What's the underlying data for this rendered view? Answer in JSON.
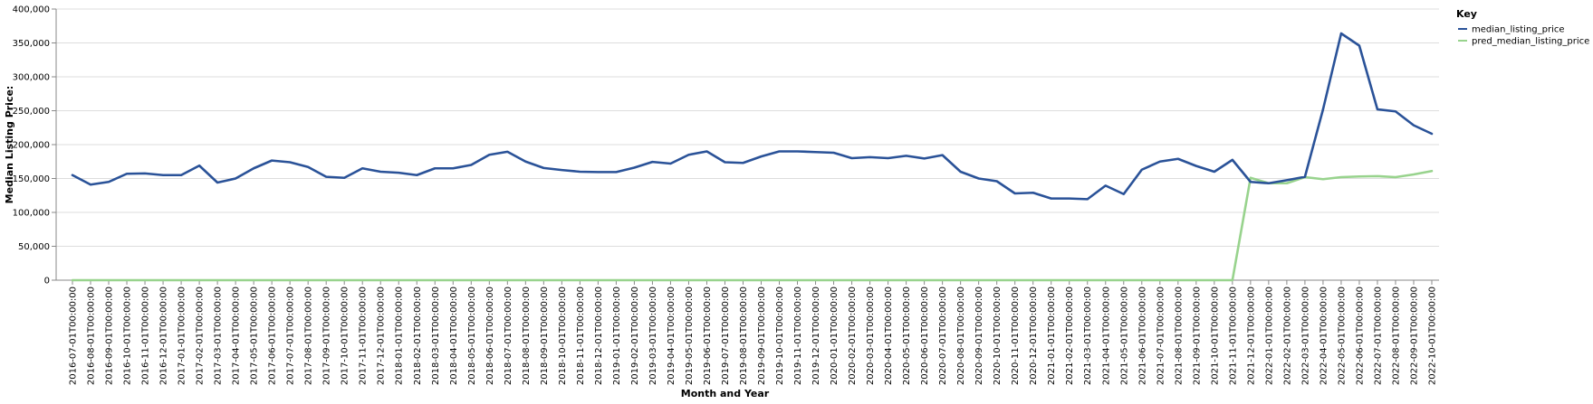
{
  "chart_data": {
    "type": "line",
    "xlabel": "Month and Year",
    "ylabel": "Median Listing Price:",
    "ylim": [
      0,
      400000
    ],
    "yticks": [
      0,
      50000,
      100000,
      150000,
      200000,
      250000,
      300000,
      350000,
      400000
    ],
    "ytick_labels": [
      "0",
      "50,000",
      "100,000",
      "150,000",
      "200,000",
      "250,000",
      "300,000",
      "350,000",
      "400,000"
    ],
    "grid": true,
    "legend": {
      "title": "Key",
      "placement": "top-right"
    },
    "x": [
      "2016-07-01T00:00:00",
      "2016-08-01T00:00:00",
      "2016-09-01T00:00:00",
      "2016-10-01T00:00:00",
      "2016-11-01T00:00:00",
      "2016-12-01T00:00:00",
      "2017-01-01T00:00:00",
      "2017-02-01T00:00:00",
      "2017-03-01T00:00:00",
      "2017-04-01T00:00:00",
      "2017-05-01T00:00:00",
      "2017-06-01T00:00:00",
      "2017-07-01T00:00:00",
      "2017-08-01T00:00:00",
      "2017-09-01T00:00:00",
      "2017-10-01T00:00:00",
      "2017-11-01T00:00:00",
      "2017-12-01T00:00:00",
      "2018-01-01T00:00:00",
      "2018-02-01T00:00:00",
      "2018-03-01T00:00:00",
      "2018-04-01T00:00:00",
      "2018-05-01T00:00:00",
      "2018-06-01T00:00:00",
      "2018-07-01T00:00:00",
      "2018-08-01T00:00:00",
      "2018-09-01T00:00:00",
      "2018-10-01T00:00:00",
      "2018-11-01T00:00:00",
      "2018-12-01T00:00:00",
      "2019-01-01T00:00:00",
      "2019-02-01T00:00:00",
      "2019-03-01T00:00:00",
      "2019-04-01T00:00:00",
      "2019-05-01T00:00:00",
      "2019-06-01T00:00:00",
      "2019-07-01T00:00:00",
      "2019-08-01T00:00:00",
      "2019-09-01T00:00:00",
      "2019-10-01T00:00:00",
      "2019-11-01T00:00:00",
      "2019-12-01T00:00:00",
      "2020-01-01T00:00:00",
      "2020-02-01T00:00:00",
      "2020-03-01T00:00:00",
      "2020-04-01T00:00:00",
      "2020-05-01T00:00:00",
      "2020-06-01T00:00:00",
      "2020-07-01T00:00:00",
      "2020-08-01T00:00:00",
      "2020-09-01T00:00:00",
      "2020-10-01T00:00:00",
      "2020-11-01T00:00:00",
      "2020-12-01T00:00:00",
      "2021-01-01T00:00:00",
      "2021-02-01T00:00:00",
      "2021-03-01T00:00:00",
      "2021-04-01T00:00:00",
      "2021-05-01T00:00:00",
      "2021-06-01T00:00:00",
      "2021-07-01T00:00:00",
      "2021-08-01T00:00:00",
      "2021-09-01T00:00:00",
      "2021-10-01T00:00:00",
      "2021-11-01T00:00:00",
      "2021-12-01T00:00:00",
      "2022-01-01T00:00:00",
      "2022-02-01T00:00:00",
      "2022-03-01T00:00:00",
      "2022-04-01T00:00:00",
      "2022-05-01T00:00:00",
      "2022-06-01T00:00:00",
      "2022-07-01T00:00:00",
      "2022-08-01T00:00:00",
      "2022-09-01T00:00:00",
      "2022-10-01T00:00:00"
    ],
    "series": [
      {
        "name": "median_listing_price",
        "color": "#2a5298",
        "values": [
          155000,
          141000,
          145000,
          157000,
          157500,
          155000,
          155000,
          169000,
          144000,
          150000,
          165000,
          176500,
          174000,
          167000,
          152500,
          151000,
          165000,
          160000,
          158500,
          155000,
          165000,
          165000,
          170000,
          185000,
          189500,
          175000,
          165500,
          162500,
          160000,
          159500,
          159500,
          166000,
          174500,
          172000,
          185000,
          190000,
          174000,
          173000,
          182500,
          190000,
          190000,
          189000,
          188000,
          180000,
          181500,
          180000,
          183500,
          179500,
          184500,
          160000,
          150000,
          146000,
          128000,
          129000,
          120500,
          120500,
          119500,
          139500,
          127000,
          163000,
          175000,
          179000,
          168500,
          160000,
          177500,
          145000,
          143000,
          147500,
          152500,
          252000,
          364000,
          346000,
          252000,
          249000,
          228500,
          216000
        ]
      },
      {
        "name": "pred_median_listing_price",
        "color": "#98d38d",
        "values": [
          0,
          0,
          0,
          0,
          0,
          0,
          0,
          0,
          0,
          0,
          0,
          0,
          0,
          0,
          0,
          0,
          0,
          0,
          0,
          0,
          0,
          0,
          0,
          0,
          0,
          0,
          0,
          0,
          0,
          0,
          0,
          0,
          0,
          0,
          0,
          0,
          0,
          0,
          0,
          0,
          0,
          0,
          0,
          0,
          0,
          0,
          0,
          0,
          0,
          0,
          0,
          0,
          0,
          0,
          0,
          0,
          0,
          0,
          0,
          0,
          0,
          0,
          0,
          0,
          0,
          151000,
          143000,
          143000,
          152000,
          149000,
          152000,
          153000,
          153500,
          152000,
          156000,
          161000
        ]
      }
    ]
  }
}
